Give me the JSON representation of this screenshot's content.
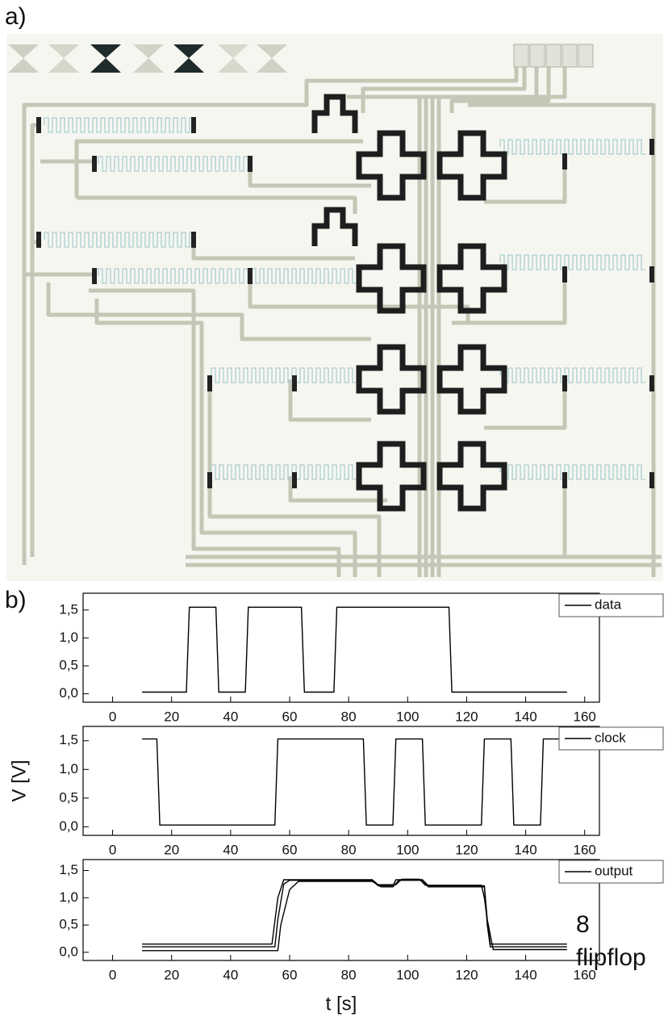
{
  "panels": {
    "a": "a)",
    "b": "b)"
  },
  "chart_data": [
    {
      "type": "line",
      "xlim": [
        -10,
        165
      ],
      "ylim": [
        -0.15,
        1.8
      ],
      "xticks": [
        0,
        20,
        40,
        60,
        80,
        100,
        120,
        140,
        160
      ],
      "yticks": [
        {
          "value": 0,
          "label": "0,0"
        },
        {
          "value": 0.5,
          "label": "0,5"
        },
        {
          "value": 1,
          "label": "1,0"
        },
        {
          "value": 1.5,
          "label": "1,5"
        }
      ],
      "legend": "upper right",
      "series": [
        {
          "name": "data",
          "color": "#000000",
          "x": [
            10,
            25,
            26,
            35,
            36,
            45,
            46,
            64,
            65,
            75,
            76,
            114,
            115,
            154
          ],
          "values": [
            0.03,
            0.03,
            1.55,
            1.55,
            0.03,
            0.03,
            1.55,
            1.55,
            0.03,
            0.03,
            1.55,
            1.55,
            0.03,
            0.03
          ]
        }
      ]
    },
    {
      "type": "line",
      "xlim": [
        -10,
        165
      ],
      "ylim": [
        -0.15,
        1.75
      ],
      "ylabel": "V [V]",
      "xticks": [
        0,
        20,
        40,
        60,
        80,
        100,
        120,
        140,
        160
      ],
      "yticks": [
        {
          "value": 0,
          "label": "0,0"
        },
        {
          "value": 0.5,
          "label": "0,5"
        },
        {
          "value": 1,
          "label": "1,0"
        },
        {
          "value": 1.5,
          "label": "1,5"
        }
      ],
      "legend": "upper right",
      "series": [
        {
          "name": "clock",
          "color": "#000000",
          "x": [
            10,
            15,
            16,
            55,
            56,
            85,
            86,
            95,
            96,
            105,
            106,
            125,
            126,
            135,
            136,
            145,
            146,
            154
          ],
          "values": [
            1.53,
            1.53,
            0.03,
            0.03,
            1.53,
            1.53,
            0.03,
            0.03,
            1.53,
            1.53,
            0.03,
            0.03,
            1.53,
            1.53,
            0.03,
            0.03,
            1.53,
            1.53
          ]
        }
      ]
    },
    {
      "type": "line",
      "xlim": [
        -10,
        165
      ],
      "ylim": [
        -0.15,
        1.7
      ],
      "xlabel": "t [s]",
      "annotation": [
        "8",
        "flipflop"
      ],
      "xticks": [
        0,
        20,
        40,
        60,
        80,
        100,
        120,
        140,
        160
      ],
      "yticks": [
        {
          "value": 0,
          "label": "0,0"
        },
        {
          "value": 0.5,
          "label": "0,5"
        },
        {
          "value": 1,
          "label": "1,0"
        },
        {
          "value": 1.5,
          "label": "1,5"
        }
      ],
      "legend": "upper right",
      "series": [
        {
          "name": "output",
          "color": "#000000",
          "x": [
            10,
            55,
            56,
            58,
            60,
            88,
            90,
            95,
            96,
            105,
            107,
            126,
            127,
            128,
            154
          ],
          "values": [
            0.1,
            0.1,
            0.6,
            1.25,
            1.32,
            1.32,
            1.22,
            1.22,
            1.33,
            1.33,
            1.22,
            1.22,
            0.5,
            0.1,
            0.1
          ]
        },
        {
          "color": "#000000",
          "x": [
            10,
            56,
            57,
            60,
            63,
            88,
            91,
            95,
            97,
            105,
            107,
            126,
            127,
            129,
            154
          ],
          "values": [
            0.03,
            0.03,
            0.5,
            1.15,
            1.3,
            1.3,
            1.2,
            1.2,
            1.32,
            1.32,
            1.2,
            1.2,
            0.6,
            0.05,
            0.05
          ]
        },
        {
          "color": "#000000",
          "x": [
            10,
            54,
            56,
            58,
            88,
            90,
            96,
            98,
            104,
            106,
            125,
            126,
            128,
            154
          ],
          "values": [
            0.15,
            0.15,
            1.0,
            1.33,
            1.33,
            1.24,
            1.24,
            1.34,
            1.34,
            1.23,
            1.23,
            1.0,
            0.15,
            0.15
          ]
        }
      ]
    }
  ]
}
